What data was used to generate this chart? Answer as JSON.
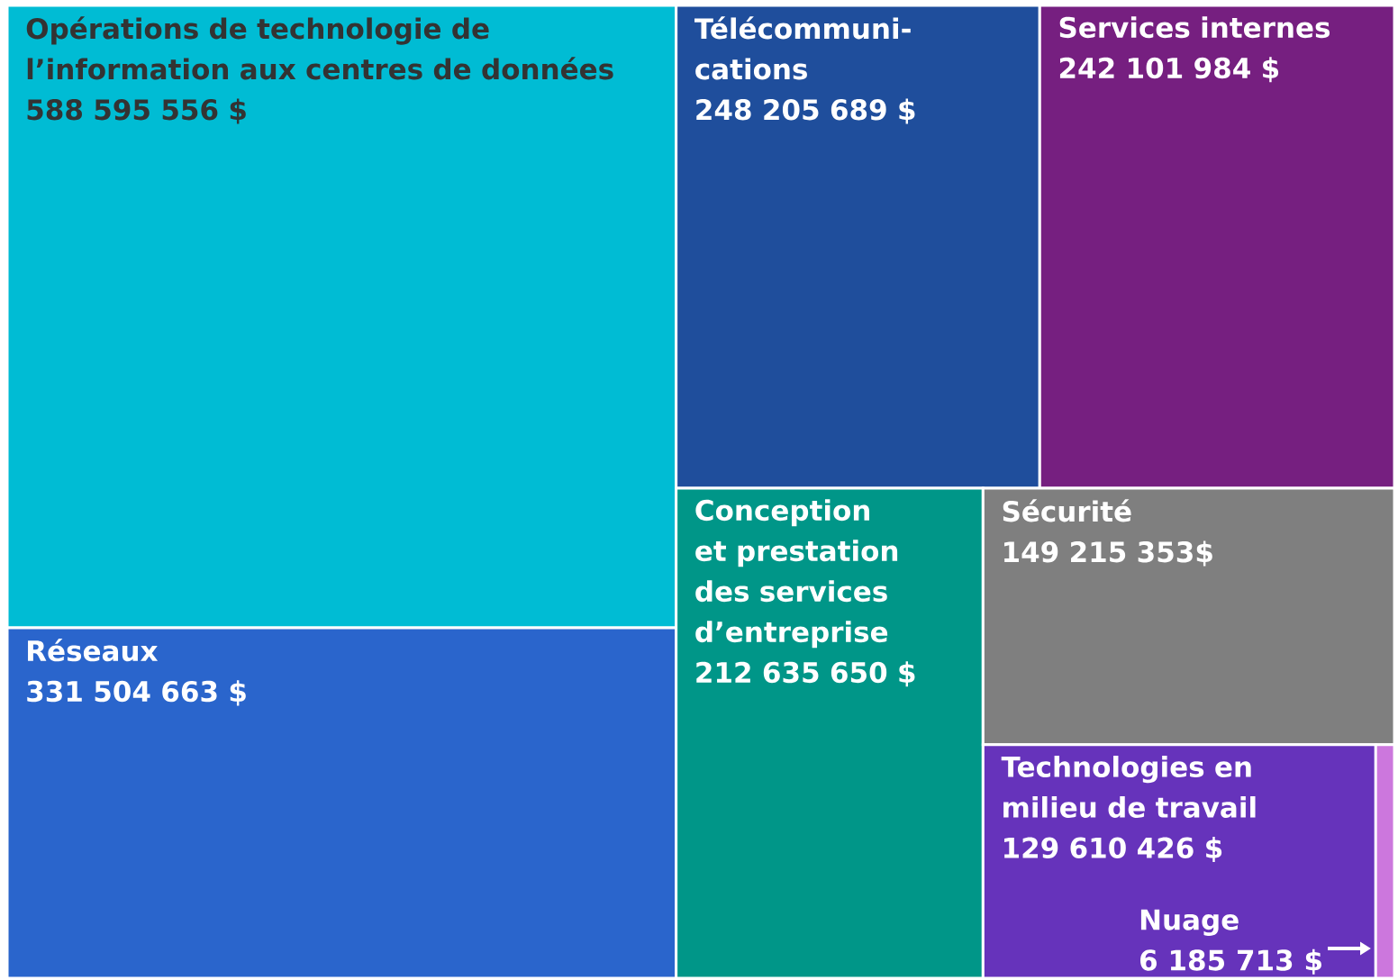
{
  "chart_data": {
    "type": "other",
    "categories": [
      "Opérations de technologie de l’information aux centres de données",
      "Réseaux",
      "Télécommuni-cations",
      "Services internes",
      "Conception et prestation des services d’entreprise",
      "Sécurité",
      "Technologies en milieu de travail",
      "Nuage"
    ],
    "values": [
      588595556,
      331504663,
      248205689,
      242101984,
      212635650,
      149215353,
      129610426,
      6185713
    ],
    "value_labels": [
      "588 595 556 $",
      "331 504 663 $",
      "248 205 689 $",
      "242 101 984 $",
      "212 635 650 $",
      "149 215 353$",
      "129 610 426 $",
      "6 185 713 $"
    ],
    "colors": [
      "#00BCD4",
      "#2A65CC",
      "#1F4E9C",
      "#761F80",
      "#009688",
      "#7F7F7F",
      "#6633BB",
      "#CC77DD"
    ]
  }
}
